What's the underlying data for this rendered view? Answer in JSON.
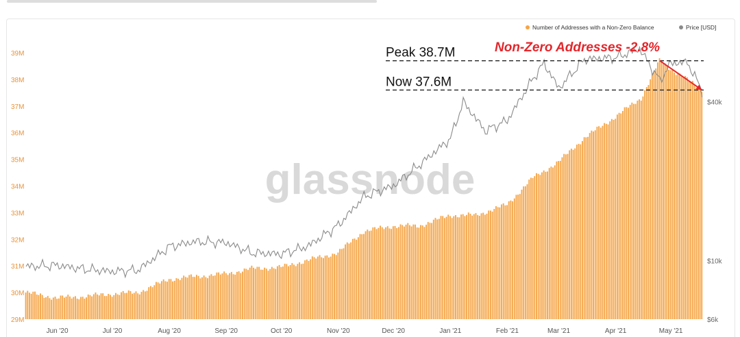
{
  "watermark": "glassnode",
  "annotation": {
    "change_label": "Non-Zero Addresses -2.8%",
    "peak_label": "Peak 38.7M",
    "now_label": "Now 37.6M",
    "color": "#e3262b"
  },
  "colors": {
    "bars": "#f5a547",
    "price": "#8a8a8a",
    "left_axis": "#e8933a",
    "right_axis": "#666666",
    "x_axis": "#555555"
  },
  "chart_data": {
    "type": "bar",
    "legend_position": "top-right",
    "grid": false,
    "series": [
      {
        "name": "Number of Addresses with a Non-Zero Balance",
        "axis": "left",
        "unit": "M",
        "x": [
          "2020-05-15",
          "2020-06-01",
          "2020-06-15",
          "2020-07-01",
          "2020-07-15",
          "2020-08-01",
          "2020-08-15",
          "2020-09-01",
          "2020-09-15",
          "2020-10-01",
          "2020-10-15",
          "2020-11-01",
          "2020-11-15",
          "2020-12-01",
          "2020-12-15",
          "2021-01-01",
          "2021-01-15",
          "2021-02-01",
          "2021-02-15",
          "2021-03-01",
          "2021-03-15",
          "2021-04-01",
          "2021-04-15",
          "2021-04-25",
          "2021-05-01",
          "2021-05-10",
          "2021-05-18"
        ],
        "values": [
          30.0,
          29.8,
          29.85,
          29.95,
          30.0,
          30.5,
          30.6,
          30.7,
          30.9,
          30.95,
          31.2,
          31.5,
          32.3,
          32.5,
          32.5,
          32.9,
          32.9,
          33.3,
          34.3,
          34.9,
          35.8,
          36.6,
          37.3,
          38.7,
          38.4,
          38.0,
          37.6
        ]
      },
      {
        "name": "Price [USD]",
        "axis": "right",
        "unit": "USD",
        "scale": "log",
        "x": [
          "2020-05-15",
          "2020-06-01",
          "2020-06-15",
          "2020-07-01",
          "2020-07-15",
          "2020-08-01",
          "2020-08-15",
          "2020-09-01",
          "2020-09-15",
          "2020-10-01",
          "2020-10-15",
          "2020-11-01",
          "2020-11-15",
          "2020-12-01",
          "2020-12-15",
          "2021-01-01",
          "2021-01-08",
          "2021-01-20",
          "2021-02-01",
          "2021-02-15",
          "2021-02-21",
          "2021-03-01",
          "2021-03-15",
          "2021-04-01",
          "2021-04-14",
          "2021-04-25",
          "2021-05-01",
          "2021-05-10",
          "2021-05-18"
        ],
        "values": [
          9500,
          9600,
          9300,
          9100,
          9200,
          11300,
          11800,
          11700,
          10700,
          10600,
          11300,
          13600,
          17500,
          19200,
          23000,
          29000,
          40000,
          31000,
          34000,
          49000,
          56000,
          45000,
          58000,
          58800,
          63500,
          48000,
          56000,
          56500,
          44000
        ]
      }
    ],
    "x_ticks": [
      "Jun '20",
      "Jul '20",
      "Aug '20",
      "Sep '20",
      "Oct '20",
      "Nov '20",
      "Dec '20",
      "Jan '21",
      "Feb '21",
      "Mar '21",
      "Apr '21",
      "May '21"
    ],
    "x_tick_dates": [
      "2020-06-01",
      "2020-07-01",
      "2020-08-01",
      "2020-09-01",
      "2020-10-01",
      "2020-11-01",
      "2020-12-01",
      "2021-01-01",
      "2021-02-01",
      "2021-03-01",
      "2021-04-01",
      "2021-05-01"
    ],
    "x_range": [
      "2020-05-15",
      "2021-05-20"
    ],
    "y_left": {
      "ylim": [
        29,
        39
      ],
      "ticks": [
        "29M",
        "30M",
        "31M",
        "32M",
        "33M",
        "34M",
        "35M",
        "36M",
        "37M",
        "38M",
        "39M"
      ],
      "tick_values": [
        29,
        30,
        31,
        32,
        33,
        34,
        35,
        36,
        37,
        38,
        39
      ]
    },
    "y_right": {
      "ylim": [
        6000,
        64000
      ],
      "ticks": [
        "$6k",
        "$10k",
        "$40k"
      ],
      "tick_values": [
        6000,
        10000,
        40000
      ]
    },
    "reference_lines": [
      {
        "label": "Peak 38.7M",
        "value": 38.7,
        "style": "dashed"
      },
      {
        "label": "Now 37.6M",
        "value": 37.6,
        "style": "dashed"
      }
    ],
    "arrow": {
      "from": {
        "x": "2021-04-25",
        "y": 38.7
      },
      "to": {
        "x": "2021-05-18",
        "y": 37.6
      }
    }
  }
}
